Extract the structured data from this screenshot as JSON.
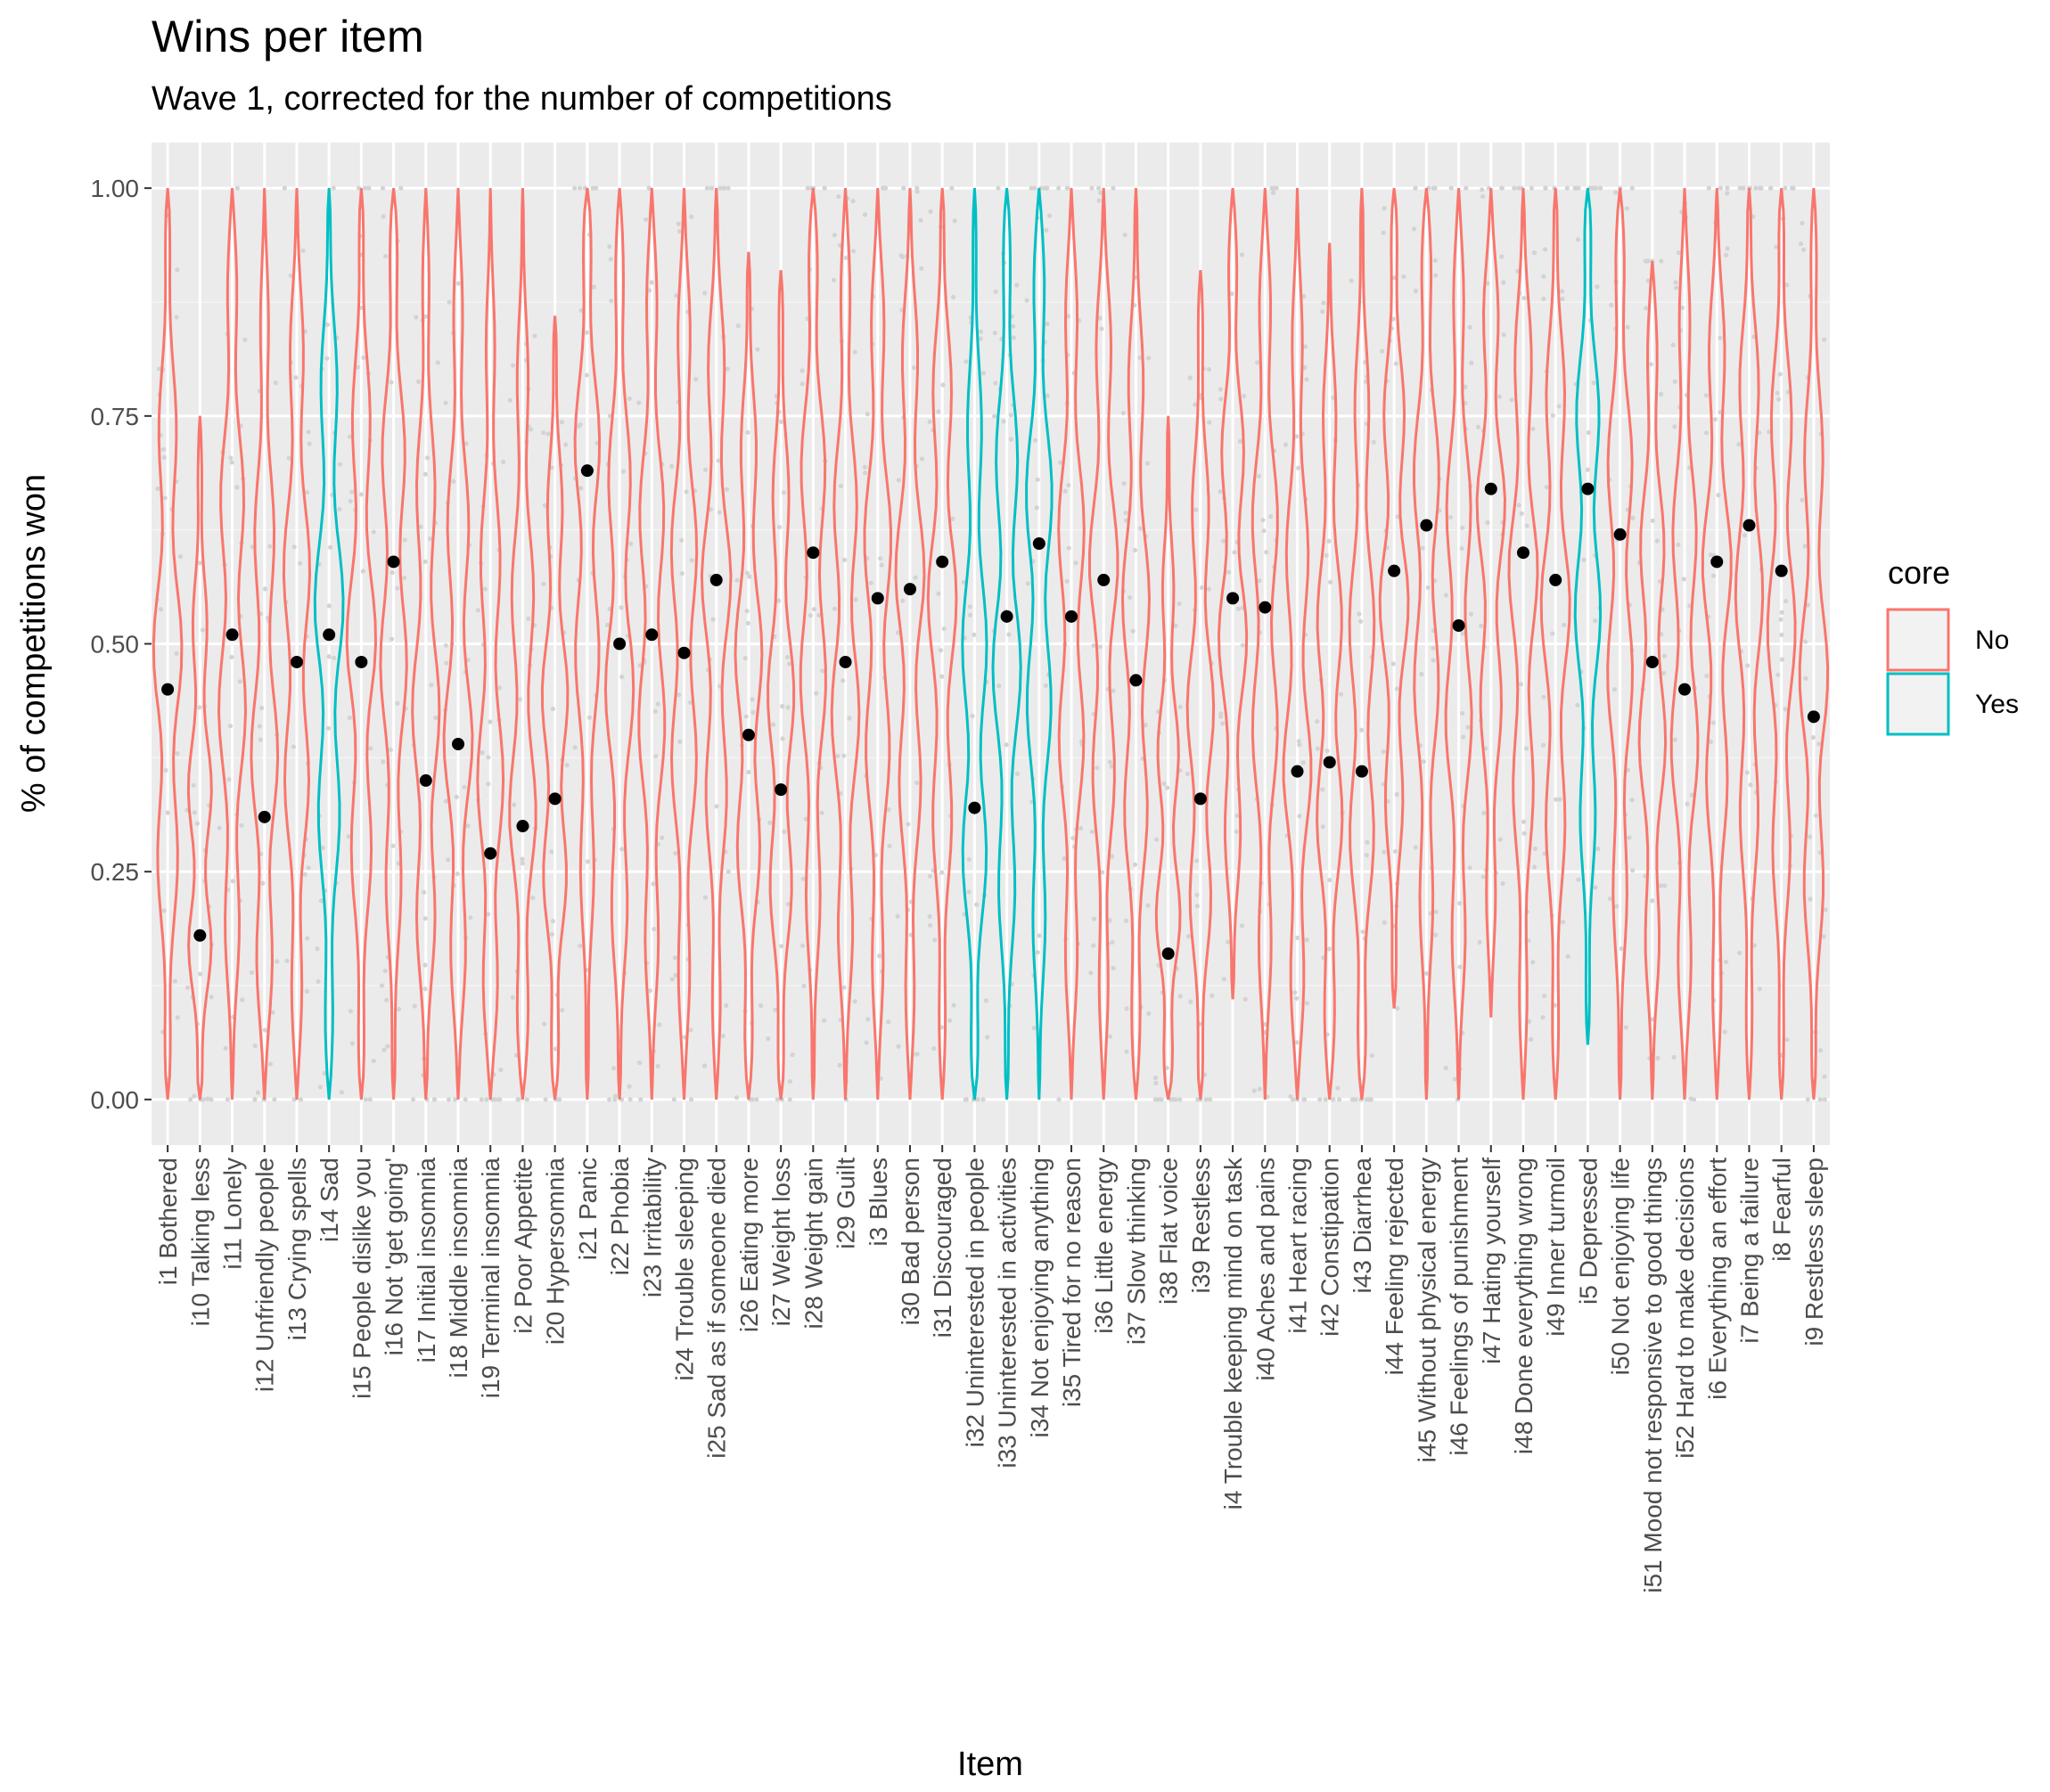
{
  "chart_data": {
    "type": "violin",
    "title": "Wins per item",
    "subtitle": "Wave 1, corrected for the number of competitions",
    "xlabel": "Item",
    "ylabel": "% of competitions won",
    "ylim": [
      -0.05,
      1.05
    ],
    "yticks": [
      "0.00",
      "0.25",
      "0.50",
      "0.75",
      "1.00"
    ],
    "grid": true,
    "legend": {
      "title": "core",
      "position": "right",
      "entries": [
        {
          "label": "No",
          "color": "#F8766D"
        },
        {
          "label": "Yes",
          "color": "#00BFC4"
        }
      ]
    },
    "colors": {
      "No": "#F8766D",
      "Yes": "#00BFC4",
      "panel": "#EBEBEB",
      "mean_point": "#000000",
      "jitter": "#D3D3D3"
    },
    "items": [
      {
        "label": "i1 Bothered",
        "core": "No",
        "mean": 0.45,
        "min": 0.0,
        "max": 1.0
      },
      {
        "label": "i10 Talking less",
        "core": "No",
        "mean": 0.18,
        "min": 0.0,
        "max": 0.75
      },
      {
        "label": "i11 Lonely",
        "core": "No",
        "mean": 0.51,
        "min": 0.0,
        "max": 1.0
      },
      {
        "label": "i12 Unfriendly people",
        "core": "No",
        "mean": 0.31,
        "min": 0.0,
        "max": 1.0
      },
      {
        "label": "i13 Crying spells",
        "core": "No",
        "mean": 0.48,
        "min": 0.0,
        "max": 1.0
      },
      {
        "label": "i14 Sad",
        "core": "Yes",
        "mean": 0.51,
        "min": 0.0,
        "max": 1.0
      },
      {
        "label": "i15 People dislike you",
        "core": "No",
        "mean": 0.48,
        "min": 0.0,
        "max": 1.0
      },
      {
        "label": "i16 Not 'get going'",
        "core": "No",
        "mean": 0.59,
        "min": 0.0,
        "max": 1.0
      },
      {
        "label": "i17 Initial insomnia",
        "core": "No",
        "mean": 0.35,
        "min": 0.0,
        "max": 1.0
      },
      {
        "label": "i18 Middle insomnia",
        "core": "No",
        "mean": 0.39,
        "min": 0.0,
        "max": 1.0
      },
      {
        "label": "i19 Terminal insomnia",
        "core": "No",
        "mean": 0.27,
        "min": 0.0,
        "max": 1.0
      },
      {
        "label": "i2 Poor Appetite",
        "core": "No",
        "mean": 0.3,
        "min": 0.0,
        "max": 1.0
      },
      {
        "label": "i20 Hypersomnia",
        "core": "No",
        "mean": 0.33,
        "min": 0.0,
        "max": 0.86
      },
      {
        "label": "i21 Panic",
        "core": "No",
        "mean": 0.69,
        "min": 0.0,
        "max": 1.0
      },
      {
        "label": "i22 Phobia",
        "core": "No",
        "mean": 0.5,
        "min": 0.0,
        "max": 1.0
      },
      {
        "label": "i23 Irritability",
        "core": "No",
        "mean": 0.51,
        "min": 0.0,
        "max": 1.0
      },
      {
        "label": "i24 Trouble sleeping",
        "core": "No",
        "mean": 0.49,
        "min": 0.0,
        "max": 1.0
      },
      {
        "label": "i25 Sad as if someone died",
        "core": "No",
        "mean": 0.57,
        "min": 0.0,
        "max": 1.0
      },
      {
        "label": "i26 Eating more",
        "core": "No",
        "mean": 0.4,
        "min": 0.0,
        "max": 0.93
      },
      {
        "label": "i27 Weight loss",
        "core": "No",
        "mean": 0.34,
        "min": 0.0,
        "max": 0.91
      },
      {
        "label": "i28 Weight gain",
        "core": "No",
        "mean": 0.6,
        "min": 0.0,
        "max": 1.0
      },
      {
        "label": "i29 Guilt",
        "core": "No",
        "mean": 0.48,
        "min": 0.0,
        "max": 1.0
      },
      {
        "label": "i3 Blues",
        "core": "No",
        "mean": 0.55,
        "min": 0.0,
        "max": 1.0
      },
      {
        "label": "i30 Bad person",
        "core": "No",
        "mean": 0.56,
        "min": 0.0,
        "max": 1.0
      },
      {
        "label": "i31 Discouraged",
        "core": "No",
        "mean": 0.59,
        "min": 0.0,
        "max": 1.0
      },
      {
        "label": "i32 Uninterested in people",
        "core": "Yes",
        "mean": 0.32,
        "min": 0.0,
        "max": 1.0
      },
      {
        "label": "i33 Uninterested in activities",
        "core": "Yes",
        "mean": 0.53,
        "min": 0.0,
        "max": 1.0
      },
      {
        "label": "i34 Not enjoying anything",
        "core": "Yes",
        "mean": 0.61,
        "min": 0.0,
        "max": 1.0
      },
      {
        "label": "i35 Tired for no reason",
        "core": "No",
        "mean": 0.53,
        "min": 0.0,
        "max": 1.0
      },
      {
        "label": "i36 Little energy",
        "core": "No",
        "mean": 0.57,
        "min": 0.0,
        "max": 1.0
      },
      {
        "label": "i37 Slow thinking",
        "core": "No",
        "mean": 0.46,
        "min": 0.0,
        "max": 1.0
      },
      {
        "label": "i38 Flat voice",
        "core": "No",
        "mean": 0.16,
        "min": 0.0,
        "max": 0.75
      },
      {
        "label": "i39 Restless",
        "core": "No",
        "mean": 0.33,
        "min": 0.0,
        "max": 0.91
      },
      {
        "label": "i4 Trouble keeping mind on task",
        "core": "No",
        "mean": 0.55,
        "min": 0.11,
        "max": 1.0
      },
      {
        "label": "i40 Aches and pains",
        "core": "No",
        "mean": 0.54,
        "min": 0.0,
        "max": 1.0
      },
      {
        "label": "i41 Heart racing",
        "core": "No",
        "mean": 0.36,
        "min": 0.0,
        "max": 1.0
      },
      {
        "label": "i42 Constipation",
        "core": "No",
        "mean": 0.37,
        "min": 0.0,
        "max": 0.94
      },
      {
        "label": "i43 Diarrhea",
        "core": "No",
        "mean": 0.36,
        "min": 0.0,
        "max": 1.0
      },
      {
        "label": "i44 Feeling rejected",
        "core": "No",
        "mean": 0.58,
        "min": 0.1,
        "max": 1.0
      },
      {
        "label": "i45 Without physical energy",
        "core": "No",
        "mean": 0.63,
        "min": 0.0,
        "max": 1.0
      },
      {
        "label": "i46 Feelings of punishment",
        "core": "No",
        "mean": 0.52,
        "min": 0.0,
        "max": 1.0
      },
      {
        "label": "i47 Hating yourself",
        "core": "No",
        "mean": 0.67,
        "min": 0.09,
        "max": 1.0
      },
      {
        "label": "i48 Done everything wrong",
        "core": "No",
        "mean": 0.6,
        "min": 0.0,
        "max": 1.0
      },
      {
        "label": "i49 Inner turmoil",
        "core": "No",
        "mean": 0.57,
        "min": 0.0,
        "max": 1.0
      },
      {
        "label": "i5 Depressed",
        "core": "Yes",
        "mean": 0.67,
        "min": 0.06,
        "max": 1.0
      },
      {
        "label": "i50 Not enjoying life",
        "core": "No",
        "mean": 0.62,
        "min": 0.0,
        "max": 1.0
      },
      {
        "label": "i51 Mood not responsive to good things",
        "core": "No",
        "mean": 0.48,
        "min": 0.0,
        "max": 0.92
      },
      {
        "label": "i52 Hard to make decisions",
        "core": "No",
        "mean": 0.45,
        "min": 0.0,
        "max": 1.0
      },
      {
        "label": "i6 Everything an effort",
        "core": "No",
        "mean": 0.59,
        "min": 0.0,
        "max": 1.0
      },
      {
        "label": "i7 Being a failure",
        "core": "No",
        "mean": 0.63,
        "min": 0.0,
        "max": 1.0
      },
      {
        "label": "i8 Fearful",
        "core": "No",
        "mean": 0.58,
        "min": 0.0,
        "max": 1.0
      },
      {
        "label": "i9 Restless sleep",
        "core": "No",
        "mean": 0.42,
        "min": 0.0,
        "max": 1.0
      }
    ]
  }
}
